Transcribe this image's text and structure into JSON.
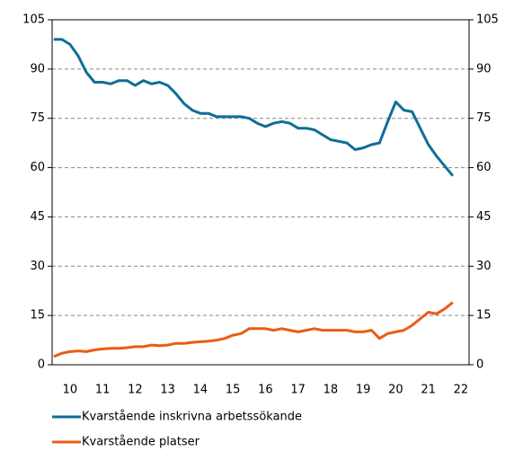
{
  "chart_data": {
    "type": "line",
    "x": [
      10,
      10.25,
      10.5,
      10.75,
      11,
      11.25,
      11.5,
      11.75,
      12,
      12.25,
      12.5,
      12.75,
      13,
      13.25,
      13.5,
      13.75,
      14,
      14.25,
      14.5,
      14.75,
      15,
      15.25,
      15.5,
      15.75,
      16,
      16.25,
      16.5,
      16.75,
      17,
      17.25,
      17.5,
      17.75,
      18,
      18.25,
      18.5,
      18.75,
      19,
      19.25,
      19.5,
      19.75,
      20,
      20.25,
      20.5,
      20.75,
      21,
      21.25,
      21.5,
      21.75,
      22,
      22.25
    ],
    "series": [
      {
        "name": "Kvarstående inskrivna arbetssökande",
        "color": "#0e6e98",
        "values": [
          99,
          99,
          97.5,
          94,
          89,
          86,
          86,
          85.5,
          86.5,
          86.5,
          85,
          86.5,
          85.5,
          86,
          85,
          82.5,
          79.5,
          77.5,
          76.5,
          76.5,
          75.5,
          75.5,
          75.5,
          75.5,
          75,
          73.5,
          72.5,
          73.5,
          74,
          73.5,
          72,
          72,
          71.5,
          70,
          68.5,
          68,
          67.5,
          65.5,
          66,
          67,
          67.5,
          74,
          80,
          77.5,
          77,
          72,
          67,
          63.5,
          60.5,
          57.5
        ]
      },
      {
        "name": "Kvarstående platser",
        "color": "#ec5b16",
        "values": [
          2.5,
          3.5,
          4,
          4.2,
          4,
          4.5,
          4.8,
          5,
          5,
          5.2,
          5.5,
          5.5,
          6,
          5.8,
          6,
          6.5,
          6.5,
          6.8,
          7,
          7.2,
          7.5,
          8,
          9,
          9.5,
          11,
          11,
          11,
          10.5,
          11,
          10.5,
          10,
          10.5,
          11,
          10.5,
          10.5,
          10.5,
          10.5,
          10,
          10,
          10.5,
          8,
          9.5,
          10,
          10.5,
          12,
          14,
          16,
          15.5,
          17,
          19
        ]
      }
    ],
    "xlim": [
      9.95,
      22.75
    ],
    "xticks": [
      {
        "value": 10.5,
        "label": "10"
      },
      {
        "value": 11.5,
        "label": "11"
      },
      {
        "value": 12.5,
        "label": "12"
      },
      {
        "value": 13.5,
        "label": "13"
      },
      {
        "value": 14.5,
        "label": "14"
      },
      {
        "value": 15.5,
        "label": "15"
      },
      {
        "value": 16.5,
        "label": "16"
      },
      {
        "value": 17.5,
        "label": "17"
      },
      {
        "value": 18.5,
        "label": "18"
      },
      {
        "value": 19.5,
        "label": "19"
      },
      {
        "value": 20.5,
        "label": "20"
      },
      {
        "value": 21.5,
        "label": "21"
      },
      {
        "value": 22.5,
        "label": "22"
      }
    ],
    "ylim": [
      0,
      105
    ],
    "yticks": [
      0,
      15,
      30,
      45,
      60,
      75,
      90,
      105
    ],
    "y2lim": [
      0,
      105
    ],
    "y2ticks": [
      0,
      15,
      30,
      45,
      60,
      75,
      90,
      105
    ],
    "grid": true,
    "legend": "bottom"
  }
}
